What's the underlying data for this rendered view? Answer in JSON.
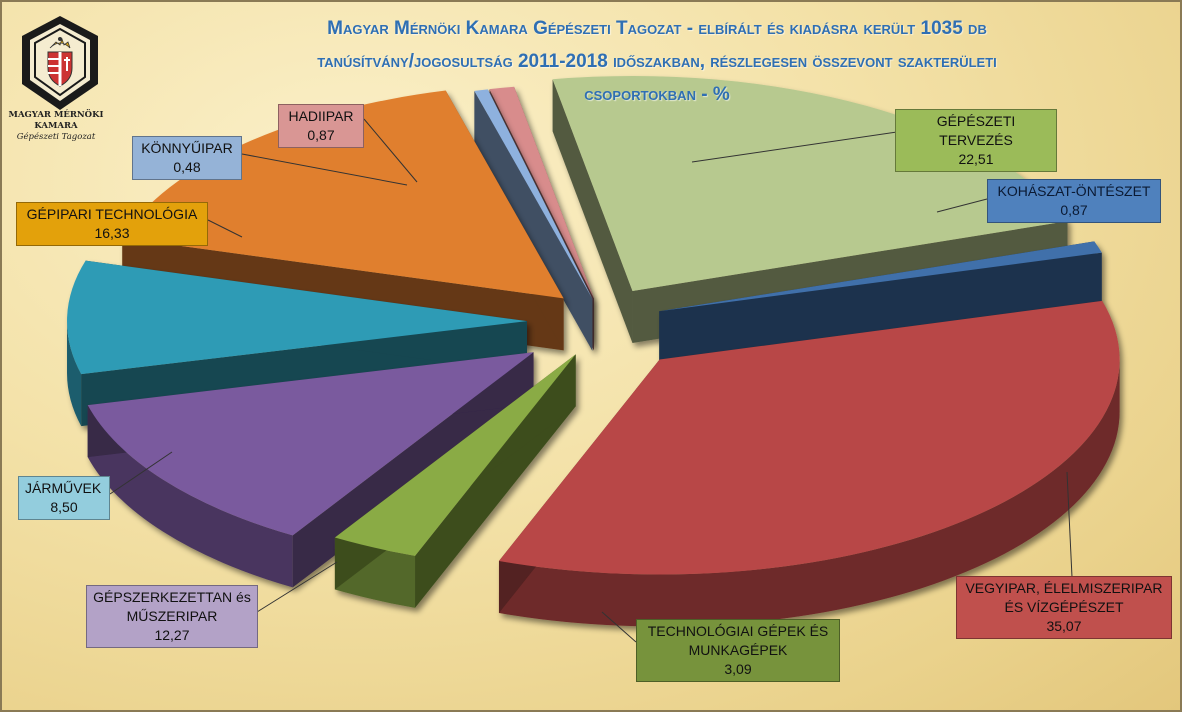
{
  "title_lines": [
    "Magyar Mérnöki Kamara Gépészeti Tagozat - elbírált és kiadásra került 1035 db",
    "tanúsítvány/jogosultság 2011-2018 időszakban, részlegesen összevont szakterületi",
    "csoportokban  -  %"
  ],
  "logo": {
    "line1": "MAGYAR MÉRNÖKI",
    "line2": "KAMARA",
    "line3": "Gépészeti Tagozat"
  },
  "chart_data": {
    "type": "pie",
    "title": "Magyar Mérnöki Kamara Gépészeti Tagozat - elbírált és kiadásra került 1035 db tanúsítvány/jogosultság 2011-2018 időszakban, részlegesen összevont szakterületi csoportokban  -  %",
    "unit": "%",
    "three_d": true,
    "exploded": true,
    "slices": [
      {
        "label": "GÉPÉSZETI TERVEZÉS",
        "value": 22.51,
        "display": "22,51",
        "color": "#b7c98f"
      },
      {
        "label": "KOHÁSZAT-ÖNTÉSZET",
        "value": 0.87,
        "display": "0,87",
        "color": "#3f6faa"
      },
      {
        "label": "VEGYIPAR, ÉLELMISZERIPAR ÉS VÍZGÉPÉSZET",
        "value": 35.07,
        "display": "35,07",
        "color": "#b84746"
      },
      {
        "label": "TECHNOLÓGIAI GÉPEK ÉS MUNKAGÉPEK",
        "value": 3.09,
        "display": "3,09",
        "color": "#8aab45"
      },
      {
        "label": "GÉPSZERKEZETTAN és MŰSZERIPAR",
        "value": 12.27,
        "display": "12,27",
        "color": "#7a5a9e"
      },
      {
        "label": "JÁRMŰVEK",
        "value": 8.5,
        "display": "8,50",
        "color": "#2f9bb5"
      },
      {
        "label": "GÉPIPARI TECHNOLÓGIA",
        "value": 16.33,
        "display": "16,33",
        "color": "#e07f2e"
      },
      {
        "label": "KÖNNYŰIPAR",
        "value": 0.48,
        "display": "0,48",
        "color": "#8eb1de"
      },
      {
        "label": "HADIIPAR",
        "value": 0.87,
        "display": "0,87",
        "color": "#d88c8c"
      }
    ]
  },
  "labels": {
    "gepeszeti_tervezes": {
      "name": "GÉPÉSZETI TERVEZÉS",
      "value": "22,51"
    },
    "kohaszat": {
      "name": "KOHÁSZAT-ÖNTÉSZET",
      "value": "0,87"
    },
    "vegyipar_line1": "VEGYIPAR, ÉLELMISZERIPAR",
    "vegyipar_line2": "ÉS VÍZGÉPÉSZET",
    "vegyipar_value": "35,07",
    "technologiai_line1": "TECHNOLÓGIAI GÉPEK ÉS",
    "technologiai_line2": "MUNKAGÉPEK",
    "technologiai_value": "3,09",
    "gepszerkezettan_line1": "GÉPSZERKEZETTAN és",
    "gepszerkezettan_line2": "MŰSZERIPAR",
    "gepszerkezettan_value": "12,27",
    "jarmuvek": {
      "name": "JÁRMŰVEK",
      "value": "8,50"
    },
    "gepipari": {
      "name": "GÉPIPARI TECHNOLÓGIA",
      "value": "16,33"
    },
    "konnyuipar": {
      "name": "KÖNNYŰIPAR",
      "value": "0,48"
    },
    "hadiipar": {
      "name": "HADIIPAR",
      "value": "0,87"
    }
  },
  "colors": {
    "title": "#2f6fb3",
    "label_gepeszeti": "#9bbb59",
    "label_kohaszat": "#4f81bd",
    "label_vegyipar": "#c0504d",
    "label_technologiai": "#77933c",
    "label_gepszerkezettan": "#b3a2c7",
    "label_jarmuvek": "#93cddd",
    "label_gepipari": "#e3a10b",
    "label_konnyuipar": "#95b3d7",
    "label_hadiipar": "#d99694"
  }
}
